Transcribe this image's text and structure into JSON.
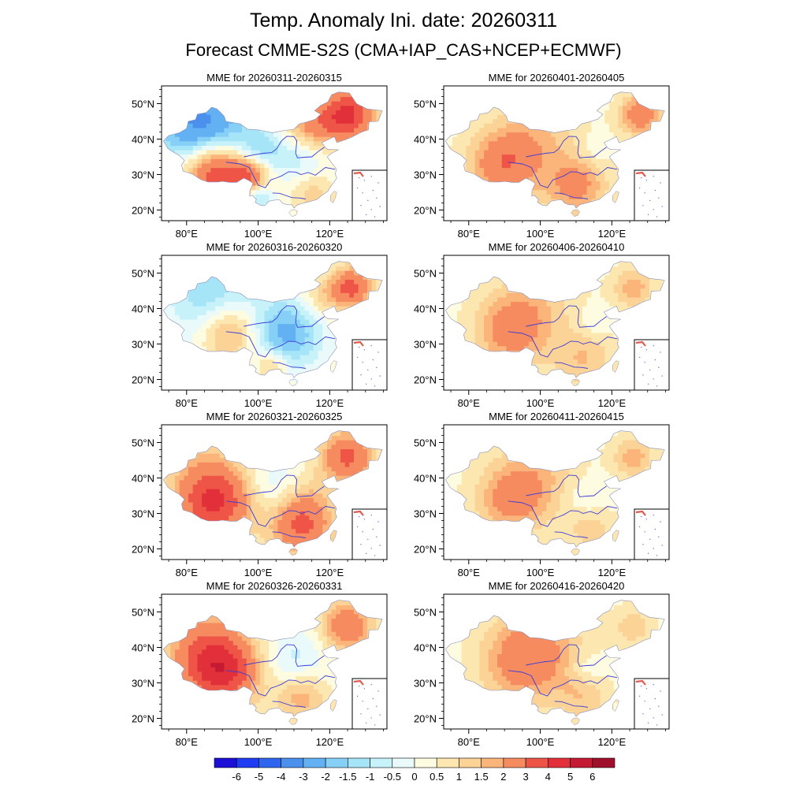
{
  "header": {
    "title": "Temp. Anomaly Ini. date: 20260311",
    "subtitle": "Forecast CMME-S2S (CMA+IAP_CAS+NCEP+ECMWF)"
  },
  "chart_data": {
    "type": "heatmap",
    "variable": "Temperature anomaly",
    "panels": [
      {
        "title": "MME for 20260311-20260315",
        "column": "left",
        "row": 1,
        "anomaly_centers": [
          {
            "lon": 85,
            "lat": 42,
            "value": -4.5,
            "spread_deg": 9
          },
          {
            "lon": 100,
            "lat": 35,
            "value": -2,
            "spread_deg": 5
          },
          {
            "lon": 88,
            "lat": 32,
            "value": 5,
            "spread_deg": 7
          },
          {
            "lon": 98,
            "lat": 30,
            "value": 3,
            "spread_deg": 4
          },
          {
            "lon": 125,
            "lat": 47,
            "value": 4,
            "spread_deg": 5
          },
          {
            "lon": 115,
            "lat": 44,
            "value": 2,
            "spread_deg": 5
          },
          {
            "lon": 112,
            "lat": 35,
            "value": -1,
            "spread_deg": 5
          },
          {
            "lon": 100,
            "lat": 24,
            "value": -2,
            "spread_deg": 3
          },
          {
            "lon": 115,
            "lat": 25,
            "value": 1,
            "spread_deg": 4
          }
        ]
      },
      {
        "title": "MME for 20260316-20260320",
        "column": "left",
        "row": 2,
        "anomaly_centers": [
          {
            "lon": 88,
            "lat": 42,
            "value": -2,
            "spread_deg": 9
          },
          {
            "lon": 92,
            "lat": 34,
            "value": 2.5,
            "spread_deg": 6
          },
          {
            "lon": 108,
            "lat": 33,
            "value": -2.5,
            "spread_deg": 7
          },
          {
            "lon": 126,
            "lat": 46,
            "value": 3,
            "spread_deg": 4
          },
          {
            "lon": 118,
            "lat": 43,
            "value": 1,
            "spread_deg": 4
          },
          {
            "lon": 104,
            "lat": 24,
            "value": 1.5,
            "spread_deg": 3
          }
        ]
      },
      {
        "title": "MME for 20260321-20260325",
        "column": "left",
        "row": 3,
        "anomaly_centers": [
          {
            "lon": 85,
            "lat": 41,
            "value": 1,
            "spread_deg": 8
          },
          {
            "lon": 88,
            "lat": 33,
            "value": 3.5,
            "spread_deg": 7
          },
          {
            "lon": 112,
            "lat": 27,
            "value": 3,
            "spread_deg": 6
          },
          {
            "lon": 104,
            "lat": 38,
            "value": -0.8,
            "spread_deg": 6
          },
          {
            "lon": 125,
            "lat": 46,
            "value": 3,
            "spread_deg": 5
          },
          {
            "lon": 115,
            "lat": 36,
            "value": 0.5,
            "spread_deg": 5
          }
        ]
      },
      {
        "title": "MME for 20260326-20260331",
        "column": "left",
        "row": 4,
        "anomaly_centers": [
          {
            "lon": 85,
            "lat": 40,
            "value": 2,
            "spread_deg": 8
          },
          {
            "lon": 90,
            "lat": 33,
            "value": 3.5,
            "spread_deg": 7
          },
          {
            "lon": 110,
            "lat": 37,
            "value": -1,
            "spread_deg": 6
          },
          {
            "lon": 112,
            "lat": 26,
            "value": 1.5,
            "spread_deg": 5
          },
          {
            "lon": 125,
            "lat": 46,
            "value": 2.5,
            "spread_deg": 5
          }
        ]
      },
      {
        "title": "MME for 20260401-20260405",
        "column": "right",
        "row": 1,
        "anomaly_centers": [
          {
            "lon": 90,
            "lat": 33,
            "value": 2.5,
            "spread_deg": 7
          },
          {
            "lon": 110,
            "lat": 27,
            "value": 2,
            "spread_deg": 6
          },
          {
            "lon": 128,
            "lat": 47,
            "value": 2.5,
            "spread_deg": 4
          },
          {
            "lon": 100,
            "lat": 42,
            "value": 1,
            "spread_deg": 8
          },
          {
            "lon": 115,
            "lat": 37,
            "value": -0.5,
            "spread_deg": 3
          }
        ]
      },
      {
        "title": "MME for 20260406-20260410",
        "column": "right",
        "row": 2,
        "anomaly_centers": [
          {
            "lon": 92,
            "lat": 34,
            "value": 2.2,
            "spread_deg": 7
          },
          {
            "lon": 112,
            "lat": 26,
            "value": 1.2,
            "spread_deg": 6
          },
          {
            "lon": 100,
            "lat": 43,
            "value": 0.8,
            "spread_deg": 8
          },
          {
            "lon": 115,
            "lat": 36,
            "value": -0.5,
            "spread_deg": 3
          },
          {
            "lon": 126,
            "lat": 46,
            "value": 1.5,
            "spread_deg": 4
          }
        ]
      },
      {
        "title": "MME for 20260411-20260415",
        "column": "right",
        "row": 3,
        "anomaly_centers": [
          {
            "lon": 92,
            "lat": 34,
            "value": 2,
            "spread_deg": 7
          },
          {
            "lon": 100,
            "lat": 42,
            "value": 1,
            "spread_deg": 8
          },
          {
            "lon": 113,
            "lat": 34,
            "value": -0.6,
            "spread_deg": 4
          },
          {
            "lon": 114,
            "lat": 26,
            "value": 1,
            "spread_deg": 5
          },
          {
            "lon": 126,
            "lat": 46,
            "value": 1.5,
            "spread_deg": 4
          }
        ]
      },
      {
        "title": "MME for 20260416-20260420",
        "column": "right",
        "row": 4,
        "anomaly_centers": [
          {
            "lon": 95,
            "lat": 35,
            "value": 1.8,
            "spread_deg": 8
          },
          {
            "lon": 100,
            "lat": 42,
            "value": 1.2,
            "spread_deg": 9
          },
          {
            "lon": 113,
            "lat": 34,
            "value": -0.6,
            "spread_deg": 3
          },
          {
            "lon": 112,
            "lat": 26,
            "value": 1,
            "spread_deg": 5
          },
          {
            "lon": 126,
            "lat": 46,
            "value": 1,
            "spread_deg": 4
          }
        ]
      }
    ],
    "axes": {
      "lon_range": [
        73,
        136
      ],
      "lat_range": [
        17,
        55
      ],
      "x_ticks": [
        80,
        100,
        120
      ],
      "x_tick_labels": [
        "80°E",
        "100°E",
        "120°E"
      ],
      "y_ticks": [
        20,
        30,
        40,
        50
      ],
      "y_tick_labels": [
        "20°N",
        "30°N",
        "40°N",
        "50°N"
      ]
    },
    "colorbar": {
      "labels": [
        "-6",
        "-5",
        "-4",
        "-3",
        "-2",
        "-1.5",
        "-1",
        "-0.5",
        "0",
        "0.5",
        "1",
        "1.5",
        "2",
        "3",
        "4",
        "5",
        "6"
      ],
      "thresholds": [
        -6,
        -5,
        -4,
        -3,
        -2,
        -1.5,
        -1,
        -0.5,
        0,
        0.5,
        1,
        1.5,
        2,
        3,
        4,
        5,
        6
      ],
      "colors": [
        "#1c0fd6",
        "#1f3cf2",
        "#2f66f0",
        "#4a90ec",
        "#63b0f2",
        "#86cff6",
        "#a6e4f8",
        "#c7f2fa",
        "#eafafb",
        "#fefce0",
        "#fde7b0",
        "#fcd396",
        "#fbb57a",
        "#f68b60",
        "#ef5547",
        "#e2303a",
        "#c41a33",
        "#a0102c"
      ]
    }
  }
}
